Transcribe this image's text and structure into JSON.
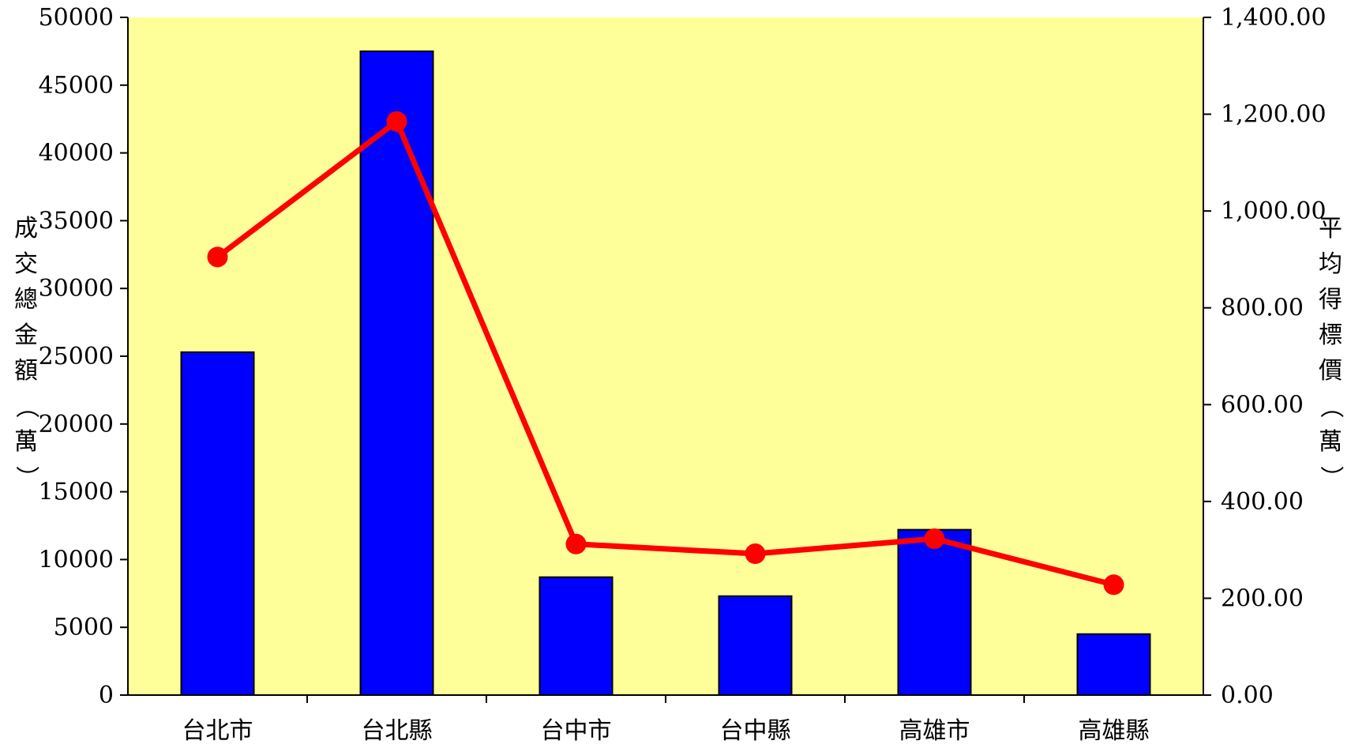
{
  "chart_data": {
    "type": "bar",
    "categories": [
      "台北市",
      "台北縣",
      "台中市",
      "台中縣",
      "高雄市",
      "高雄縣"
    ],
    "series": [
      {
        "type": "bar",
        "axis": "left",
        "color": "#0000FF",
        "values": [
          25300,
          47500,
          8700,
          7300,
          12200,
          4500
        ]
      },
      {
        "type": "line",
        "axis": "right",
        "color": "#FF0000",
        "values": [
          905,
          1185,
          312,
          292,
          323,
          228
        ]
      }
    ],
    "ylabel_left": "成交總金額（萬）",
    "ylabel_right": "平均得標價（萬）",
    "ylim_left": [
      0,
      50000
    ],
    "ylim_right": [
      0,
      1400
    ],
    "yticks_left": [
      "0",
      "5000",
      "10000",
      "15000",
      "20000",
      "25000",
      "30000",
      "35000",
      "40000",
      "45000",
      "50000"
    ],
    "yticks_right": [
      "0.00",
      "200.00",
      "400.00",
      "600.00",
      "800.00",
      "1,000.00",
      "1,200.00",
      "1,400.00"
    ],
    "plot_background": "#FFFF99",
    "grid": false,
    "legend": "none"
  }
}
